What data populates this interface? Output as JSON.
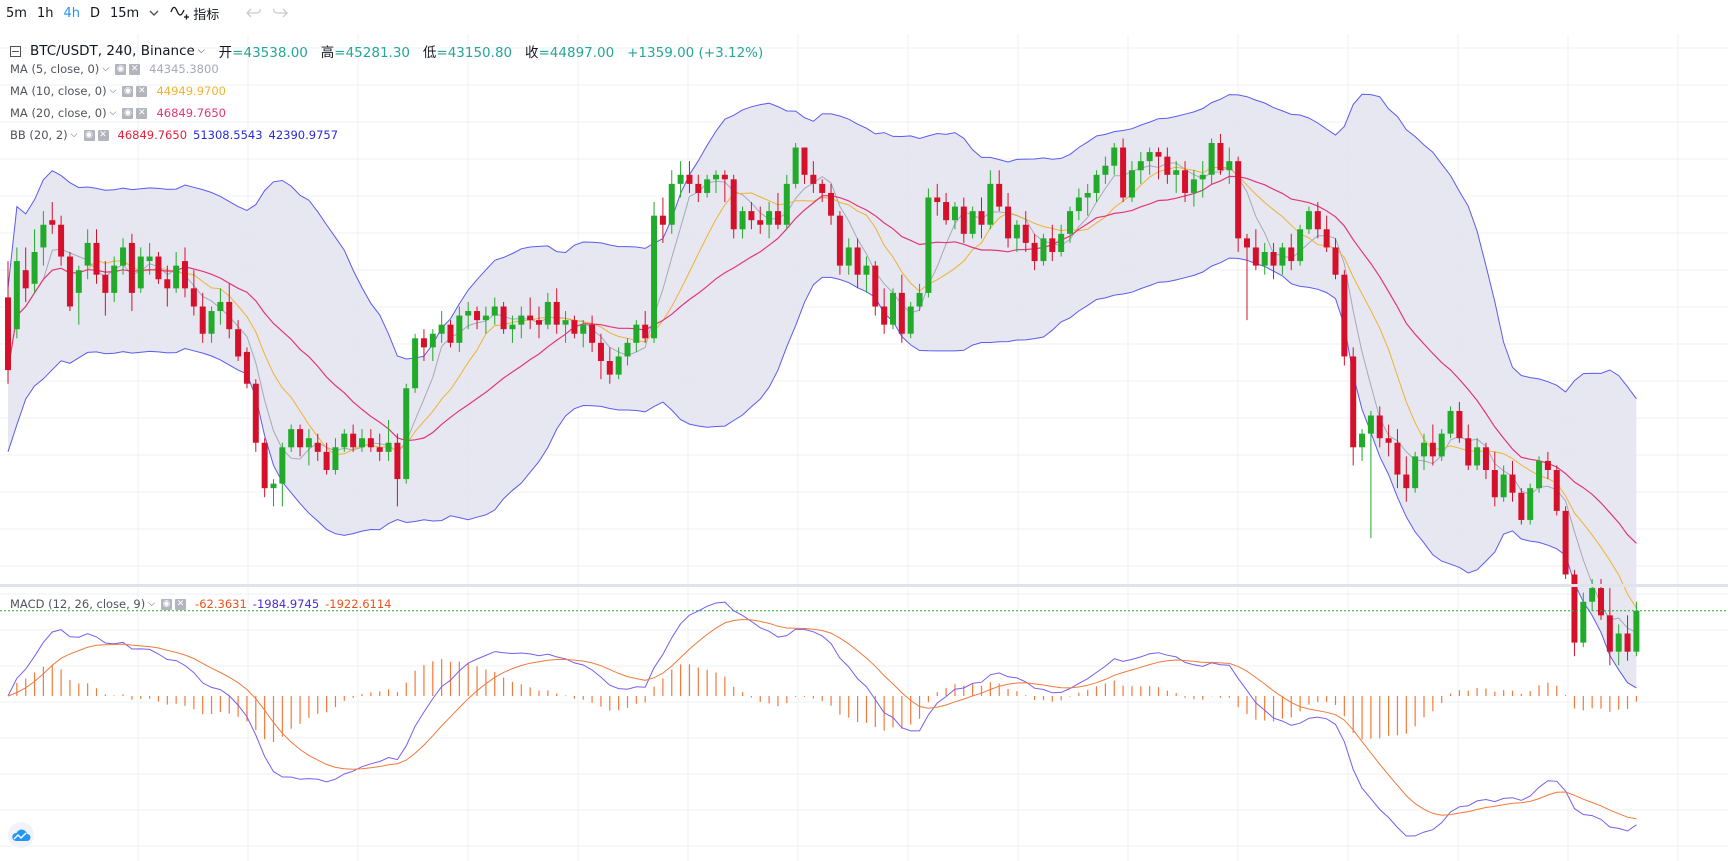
{
  "toolbar": {
    "timeframes": [
      "5m",
      "1h",
      "4h",
      "D",
      "15m"
    ],
    "active_timeframe": "4h",
    "indicators_label": "指标",
    "icons": [
      "chevron-down-icon",
      "indicators-icon",
      "undo-icon",
      "redo-icon"
    ]
  },
  "legend": {
    "symbol": "BTC/USDT, 240, Binance",
    "open_label": "开",
    "open": "=43538.00",
    "high_label": "高",
    "high": "=45281.30",
    "low_label": "低",
    "low": "=43150.80",
    "close_label": "收",
    "close": "=44897.00",
    "change": "+1359.00 (+3.12%)",
    "ma5": {
      "name": "MA (5, close, 0)",
      "value": "44345.3800"
    },
    "ma10": {
      "name": "MA (10, close, 0)",
      "value": "44949.9700"
    },
    "ma20": {
      "name": "MA (20, close, 0)",
      "value": "46849.7650"
    },
    "bb": {
      "name": "BB (20, 2)",
      "basis": "46849.7650",
      "upper": "51308.5543",
      "lower": "42390.9757"
    },
    "macd": {
      "name": "MACD (12, 26, close, 9)",
      "hist": "-62.3631",
      "macd": "-1984.9745",
      "signal": "-1922.6114"
    }
  },
  "colors": {
    "up": "#22ab2b",
    "down": "#d5102b",
    "ma5": "#a5a9b8",
    "ma10": "#f0b232",
    "ma20": "#e3367a",
    "bb_band": "#5b5bf0",
    "bb_fill": "#e3e3ef",
    "macd_line": "#7b5cf0",
    "signal_line": "#f07a3c",
    "hist": "#f47a3b",
    "last_price_line": "#22ab2b",
    "grid": "#eef1f5"
  },
  "chart_data": {
    "type": "candlestick",
    "interval": "4h",
    "price_range": [
      42000,
      54000
    ],
    "candles_ohlc": [
      [
        48200,
        49000,
        46300,
        46600
      ],
      [
        47500,
        49300,
        47300,
        49000
      ],
      [
        48800,
        49300,
        48100,
        48400
      ],
      [
        48500,
        49700,
        48300,
        49200
      ],
      [
        49300,
        50100,
        48900,
        49800
      ],
      [
        49900,
        50300,
        49600,
        49800
      ],
      [
        49800,
        50000,
        48900,
        49100
      ],
      [
        49100,
        49200,
        47900,
        48000
      ],
      [
        48300,
        48900,
        47600,
        48800
      ],
      [
        48900,
        49700,
        48600,
        49400
      ],
      [
        49400,
        49700,
        48500,
        48700
      ],
      [
        48700,
        49000,
        47800,
        48300
      ],
      [
        48300,
        49100,
        48100,
        48900
      ],
      [
        48900,
        49500,
        48700,
        49300
      ],
      [
        49400,
        49600,
        47900,
        48300
      ],
      [
        48400,
        49300,
        48300,
        49100
      ],
      [
        49000,
        49400,
        48700,
        49100
      ],
      [
        49100,
        49200,
        48500,
        48600
      ],
      [
        48600,
        48900,
        48000,
        48400
      ],
      [
        48400,
        49200,
        48300,
        48900
      ],
      [
        49000,
        49300,
        48200,
        48400
      ],
      [
        48400,
        48800,
        47800,
        48000
      ],
      [
        48000,
        48300,
        47200,
        47400
      ],
      [
        47400,
        48000,
        47200,
        47900
      ],
      [
        47900,
        48400,
        47600,
        48100
      ],
      [
        48100,
        48500,
        47300,
        47500
      ],
      [
        47500,
        47700,
        46800,
        46900
      ],
      [
        47000,
        47100,
        46200,
        46300
      ],
      [
        46300,
        46400,
        44800,
        45000
      ],
      [
        45000,
        45100,
        43800,
        44000
      ],
      [
        44000,
        44200,
        43600,
        44100
      ],
      [
        44100,
        45000,
        43600,
        44900
      ],
      [
        44900,
        45400,
        44800,
        45300
      ],
      [
        45300,
        45400,
        44700,
        44900
      ],
      [
        44900,
        45300,
        44500,
        45100
      ],
      [
        45000,
        45200,
        44600,
        44800
      ],
      [
        44800,
        45000,
        44300,
        44400
      ],
      [
        44400,
        45100,
        44300,
        44900
      ],
      [
        44900,
        45300,
        44800,
        45200
      ],
      [
        45200,
        45400,
        44800,
        44900
      ],
      [
        44900,
        45300,
        44800,
        45100
      ],
      [
        45100,
        45300,
        44800,
        44900
      ],
      [
        44900,
        45200,
        44600,
        44800
      ],
      [
        44800,
        45500,
        44600,
        45000
      ],
      [
        45000,
        45200,
        43600,
        44200
      ],
      [
        44200,
        46300,
        44100,
        46200
      ],
      [
        46200,
        47400,
        46100,
        47300
      ],
      [
        47300,
        47500,
        46800,
        47100
      ],
      [
        47100,
        47500,
        46800,
        47400
      ],
      [
        47400,
        47900,
        47200,
        47600
      ],
      [
        47600,
        47700,
        47100,
        47200
      ],
      [
        47200,
        48000,
        47000,
        47800
      ],
      [
        47800,
        48100,
        47500,
        47900
      ],
      [
        47900,
        48000,
        47500,
        47700
      ],
      [
        47700,
        48000,
        47400,
        47800
      ],
      [
        47800,
        48200,
        47600,
        48000
      ],
      [
        48000,
        48100,
        47400,
        47500
      ],
      [
        47500,
        47800,
        47200,
        47600
      ],
      [
        47600,
        48000,
        47300,
        47800
      ],
      [
        47800,
        48200,
        47500,
        47700
      ],
      [
        47700,
        48000,
        47300,
        47600
      ],
      [
        47600,
        48300,
        47500,
        48100
      ],
      [
        48100,
        48400,
        47400,
        47600
      ],
      [
        47600,
        47900,
        47200,
        47700
      ],
      [
        47700,
        47800,
        47300,
        47400
      ],
      [
        47400,
        47700,
        47100,
        47600
      ],
      [
        47600,
        47800,
        47000,
        47200
      ],
      [
        47200,
        47400,
        46400,
        46800
      ],
      [
        46800,
        47100,
        46300,
        46500
      ],
      [
        46500,
        47100,
        46400,
        46900
      ],
      [
        46900,
        47300,
        46700,
        47200
      ],
      [
        47200,
        47700,
        47000,
        47600
      ],
      [
        47600,
        47900,
        47200,
        47300
      ],
      [
        47300,
        50300,
        47200,
        50000
      ],
      [
        50000,
        50400,
        49400,
        49800
      ],
      [
        49800,
        51000,
        49600,
        50700
      ],
      [
        50700,
        51200,
        50400,
        50900
      ],
      [
        50900,
        51200,
        50500,
        50700
      ],
      [
        50700,
        50900,
        50300,
        50500
      ],
      [
        50500,
        50900,
        50400,
        50800
      ],
      [
        50800,
        51000,
        50500,
        50900
      ],
      [
        50900,
        51000,
        50300,
        50800
      ],
      [
        50800,
        50900,
        49500,
        49700
      ],
      [
        49700,
        50200,
        49500,
        50100
      ],
      [
        50100,
        50300,
        49700,
        49900
      ],
      [
        49900,
        50200,
        49600,
        49800
      ],
      [
        49800,
        50300,
        49500,
        50100
      ],
      [
        50100,
        50500,
        49700,
        49800
      ],
      [
        49800,
        50900,
        49700,
        50700
      ],
      [
        50700,
        51600,
        50600,
        51500
      ],
      [
        51500,
        51500,
        50700,
        50900
      ],
      [
        50900,
        51200,
        50500,
        50700
      ],
      [
        50700,
        50800,
        50300,
        50500
      ],
      [
        50500,
        50700,
        49800,
        50000
      ],
      [
        50000,
        50100,
        48700,
        48900
      ],
      [
        48900,
        49500,
        48700,
        49300
      ],
      [
        49300,
        49500,
        48400,
        48700
      ],
      [
        48700,
        49100,
        48300,
        48900
      ],
      [
        48900,
        49000,
        47800,
        48000
      ],
      [
        48000,
        48400,
        47400,
        47600
      ],
      [
        47600,
        48400,
        47500,
        48300
      ],
      [
        48300,
        48700,
        47200,
        47400
      ],
      [
        47400,
        48100,
        47300,
        48000
      ],
      [
        48000,
        48500,
        47900,
        48300
      ],
      [
        48300,
        50600,
        48200,
        50400
      ],
      [
        50400,
        50700,
        50000,
        50300
      ],
      [
        50300,
        50500,
        49800,
        49900
      ],
      [
        49900,
        50300,
        49700,
        50200
      ],
      [
        50200,
        50400,
        49400,
        49600
      ],
      [
        49600,
        50200,
        49500,
        50100
      ],
      [
        50100,
        50400,
        49500,
        49800
      ],
      [
        49800,
        51000,
        49700,
        50700
      ],
      [
        50700,
        51000,
        50100,
        50200
      ],
      [
        50200,
        50500,
        49300,
        49500
      ],
      [
        49500,
        49900,
        49200,
        49800
      ],
      [
        49800,
        50100,
        49200,
        49400
      ],
      [
        49400,
        49600,
        48800,
        49000
      ],
      [
        49000,
        49600,
        48900,
        49500
      ],
      [
        49500,
        49800,
        49000,
        49200
      ],
      [
        49200,
        49800,
        49100,
        49600
      ],
      [
        49600,
        50200,
        49400,
        50100
      ],
      [
        50100,
        50600,
        49900,
        50400
      ],
      [
        50400,
        50700,
        50000,
        50500
      ],
      [
        50500,
        51000,
        50300,
        50900
      ],
      [
        50900,
        51300,
        50700,
        51100
      ],
      [
        51100,
        51600,
        50900,
        51500
      ],
      [
        51500,
        51700,
        50300,
        50400
      ],
      [
        50400,
        51200,
        50300,
        51000
      ],
      [
        51000,
        51400,
        50700,
        51200
      ],
      [
        51200,
        51500,
        50900,
        51400
      ],
      [
        51400,
        51500,
        50800,
        51300
      ],
      [
        51300,
        51500,
        50700,
        50900
      ],
      [
        50900,
        51200,
        50500,
        51000
      ],
      [
        51000,
        51200,
        50300,
        50500
      ],
      [
        50500,
        51000,
        50200,
        50800
      ],
      [
        50800,
        51200,
        50400,
        50900
      ],
      [
        50900,
        51700,
        50700,
        51600
      ],
      [
        51600,
        51800,
        50900,
        51000
      ],
      [
        51000,
        51500,
        50700,
        51200
      ],
      [
        51200,
        51300,
        49200,
        49500
      ],
      [
        49500,
        49600,
        47700,
        49300
      ],
      [
        49300,
        49700,
        48800,
        48900
      ],
      [
        48900,
        49400,
        48700,
        49200
      ],
      [
        49200,
        49400,
        48600,
        48900
      ],
      [
        48900,
        49400,
        48700,
        49300
      ],
      [
        49300,
        49600,
        48800,
        49000
      ],
      [
        49000,
        49800,
        48900,
        49700
      ],
      [
        49700,
        50200,
        49600,
        50100
      ],
      [
        50100,
        50300,
        49500,
        49700
      ],
      [
        49700,
        50000,
        49200,
        49300
      ],
      [
        49300,
        49500,
        48600,
        48700
      ],
      [
        48700,
        48800,
        46700,
        46900
      ],
      [
        46900,
        47100,
        44500,
        44900
      ],
      [
        44900,
        45300,
        44600,
        45200
      ],
      [
        45200,
        45700,
        42900,
        45600
      ],
      [
        45600,
        45800,
        44900,
        45100
      ],
      [
        45100,
        45400,
        44700,
        45000
      ],
      [
        45000,
        45300,
        44000,
        44300
      ],
      [
        44300,
        44700,
        43700,
        44000
      ],
      [
        44000,
        44800,
        43900,
        44700
      ],
      [
        44700,
        45200,
        44400,
        45000
      ],
      [
        45000,
        45400,
        44500,
        44700
      ],
      [
        44700,
        45300,
        44600,
        45200
      ],
      [
        45200,
        45800,
        45100,
        45700
      ],
      [
        45700,
        45900,
        45000,
        45100
      ],
      [
        45100,
        45400,
        44400,
        44500
      ],
      [
        44500,
        45100,
        44400,
        44900
      ],
      [
        44900,
        45000,
        44200,
        44400
      ],
      [
        44400,
        44800,
        43600,
        43800
      ],
      [
        43800,
        44500,
        43700,
        44300
      ],
      [
        44300,
        44600,
        43700,
        43900
      ],
      [
        43900,
        44000,
        43200,
        43300
      ],
      [
        43300,
        44100,
        43200,
        44000
      ],
      [
        44000,
        44700,
        43900,
        44600
      ],
      [
        44600,
        44800,
        44200,
        44400
      ],
      [
        44400,
        44500,
        43400,
        43500
      ],
      [
        43500,
        43600,
        42000,
        42100
      ],
      [
        42100,
        42200,
        40300,
        40600
      ],
      [
        40600,
        41700,
        40500,
        41500
      ],
      [
        41500,
        42000,
        41300,
        41800
      ],
      [
        41800,
        42000,
        41100,
        41200
      ],
      [
        41200,
        41800,
        40100,
        40400
      ],
      [
        40400,
        41000,
        40100,
        40800
      ],
      [
        40800,
        41200,
        40200,
        40400
      ],
      [
        40400,
        41500,
        40300,
        41300
      ]
    ]
  }
}
